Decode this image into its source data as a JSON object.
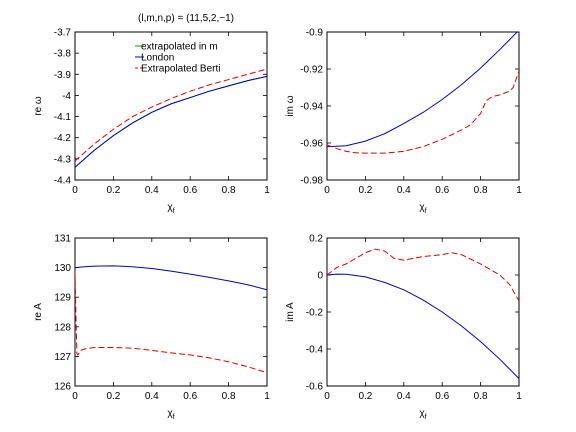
{
  "figure": {
    "title": "(l,m,n,p) = (11,5,2,−1)"
  },
  "chart_data": [
    {
      "type": "line",
      "xlabel": "χf",
      "ylabel": "re ω",
      "xlim": [
        0,
        1
      ],
      "ylim": [
        -4.4,
        -3.7
      ],
      "xticks": [
        "0",
        "0.2",
        "0.4",
        "0.6",
        "0.8",
        "1"
      ],
      "yticks": [
        "-4.4",
        "-4.3",
        "-4.2",
        "-4.1",
        "-4",
        "-3.9",
        "-3.8",
        "-3.7"
      ],
      "grid": false,
      "legend": {
        "placement": "top",
        "entries": [
          "extrapolated in m",
          "London",
          "Extrapolated Berti"
        ]
      },
      "series": [
        {
          "name": "extrapolated in m",
          "color": "#00a000",
          "style": "solid",
          "x": [
            0,
            0.1,
            0.2,
            0.3,
            0.4,
            0.5,
            0.6,
            0.7,
            0.8,
            0.9,
            1.0
          ],
          "y": [
            -4.34,
            -4.26,
            -4.19,
            -4.13,
            -4.08,
            -4.04,
            -4.01,
            -3.98,
            -3.955,
            -3.93,
            -3.91
          ]
        },
        {
          "name": "London",
          "color": "#0000cc",
          "style": "solid",
          "x": [
            0,
            0.1,
            0.2,
            0.3,
            0.4,
            0.5,
            0.6,
            0.7,
            0.8,
            0.9,
            1.0
          ],
          "y": [
            -4.34,
            -4.26,
            -4.19,
            -4.13,
            -4.08,
            -4.04,
            -4.01,
            -3.98,
            -3.955,
            -3.93,
            -3.91
          ]
        },
        {
          "name": "Extrapolated Berti",
          "color": "#dd0000",
          "style": "dashed",
          "x": [
            0,
            0.1,
            0.2,
            0.3,
            0.4,
            0.5,
            0.6,
            0.7,
            0.8,
            0.9,
            1.0
          ],
          "y": [
            -4.31,
            -4.23,
            -4.16,
            -4.1,
            -4.055,
            -4.015,
            -3.98,
            -3.95,
            -3.925,
            -3.9,
            -3.875
          ]
        }
      ]
    },
    {
      "type": "line",
      "xlabel": "χf",
      "ylabel": "im ω",
      "xlim": [
        0,
        1
      ],
      "ylim": [
        -0.98,
        -0.9
      ],
      "xticks": [
        "0",
        "0.2",
        "0.4",
        "0.6",
        "0.8",
        "1"
      ],
      "yticks": [
        "-0.98",
        "-0.96",
        "-0.94",
        "-0.92",
        "-0.9"
      ],
      "grid": false,
      "series": [
        {
          "name": "London",
          "color": "#0000cc",
          "style": "solid",
          "x": [
            0,
            0.1,
            0.2,
            0.3,
            0.4,
            0.5,
            0.6,
            0.7,
            0.8,
            0.9,
            1.0
          ],
          "y": [
            -0.962,
            -0.9615,
            -0.959,
            -0.955,
            -0.9495,
            -0.9435,
            -0.9365,
            -0.9285,
            -0.9195,
            -0.9095,
            -0.899
          ]
        },
        {
          "name": "Extrapolated Berti",
          "color": "#dd0000",
          "style": "dashed",
          "x": [
            0,
            0.05,
            0.1,
            0.15,
            0.2,
            0.3,
            0.4,
            0.5,
            0.6,
            0.7,
            0.75,
            0.8,
            0.83,
            0.86,
            0.9,
            0.95,
            0.97,
            1.0
          ],
          "y": [
            -0.961,
            -0.963,
            -0.9645,
            -0.9653,
            -0.9655,
            -0.9655,
            -0.9645,
            -0.962,
            -0.958,
            -0.953,
            -0.95,
            -0.944,
            -0.937,
            -0.935,
            -0.934,
            -0.932,
            -0.93,
            -0.921
          ]
        }
      ]
    },
    {
      "type": "line",
      "xlabel": "χf",
      "ylabel": "re A",
      "xlim": [
        0,
        1
      ],
      "ylim": [
        126,
        131
      ],
      "xticks": [
        "0",
        "0.2",
        "0.4",
        "0.6",
        "0.8",
        "1"
      ],
      "yticks": [
        "126",
        "127",
        "128",
        "129",
        "130",
        "131"
      ],
      "grid": false,
      "series": [
        {
          "name": "London",
          "color": "#0000cc",
          "style": "solid",
          "x": [
            0,
            0.05,
            0.1,
            0.2,
            0.3,
            0.4,
            0.5,
            0.6,
            0.7,
            0.8,
            0.9,
            1.0
          ],
          "y": [
            130.0,
            130.03,
            130.05,
            130.06,
            130.03,
            129.97,
            129.88,
            129.78,
            129.67,
            129.55,
            129.42,
            129.25
          ]
        },
        {
          "name": "Extrapolated Berti",
          "color": "#dd0000",
          "style": "dashed",
          "x": [
            0,
            0.005,
            0.01,
            0.015,
            0.03,
            0.05,
            0.1,
            0.2,
            0.3,
            0.4,
            0.5,
            0.6,
            0.7,
            0.8,
            0.9,
            1.0
          ],
          "y": [
            129.9,
            128.3,
            127.1,
            127.05,
            127.2,
            127.25,
            127.3,
            127.3,
            127.28,
            127.2,
            127.12,
            127.05,
            126.95,
            126.82,
            126.65,
            126.45
          ]
        }
      ]
    },
    {
      "type": "line",
      "xlabel": "χf",
      "ylabel": "im A",
      "xlim": [
        0,
        1
      ],
      "ylim": [
        -0.6,
        0.2
      ],
      "xticks": [
        "0",
        "0.2",
        "0.4",
        "0.6",
        "0.8",
        "1"
      ],
      "yticks": [
        "-0.6",
        "-0.4",
        "-0.2",
        "0",
        "0.2"
      ],
      "grid": false,
      "series": [
        {
          "name": "London",
          "color": "#0000cc",
          "style": "solid",
          "x": [
            0,
            0.05,
            0.1,
            0.2,
            0.3,
            0.4,
            0.5,
            0.6,
            0.7,
            0.8,
            0.9,
            1.0
          ],
          "y": [
            0.0,
            0.005,
            0.004,
            -0.01,
            -0.04,
            -0.08,
            -0.135,
            -0.2,
            -0.275,
            -0.36,
            -0.455,
            -0.56
          ]
        },
        {
          "name": "Extrapolated Berti",
          "color": "#dd0000",
          "style": "dashed",
          "x": [
            0,
            0.05,
            0.1,
            0.15,
            0.2,
            0.25,
            0.3,
            0.35,
            0.4,
            0.5,
            0.6,
            0.65,
            0.7,
            0.8,
            0.9,
            0.95,
            1.0
          ],
          "y": [
            0.0,
            0.04,
            0.06,
            0.09,
            0.12,
            0.14,
            0.13,
            0.09,
            0.08,
            0.1,
            0.11,
            0.12,
            0.11,
            0.06,
            0.0,
            -0.05,
            -0.14
          ]
        }
      ]
    }
  ]
}
